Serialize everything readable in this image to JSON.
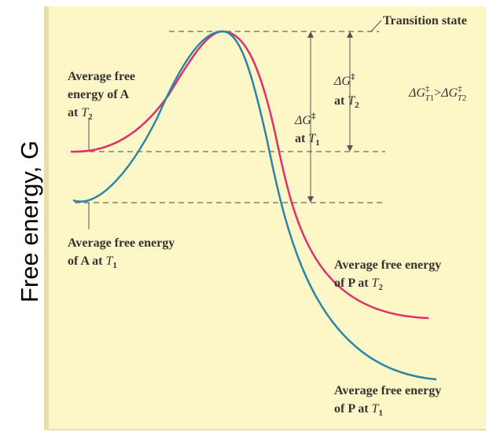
{
  "y_axis_label": "Free energy, G",
  "transition_state": "Transition state",
  "a_t2": {
    "lines": [
      "Average free",
      "energy of A"
    ],
    "last": "at",
    "var": "T",
    "sub": "2"
  },
  "a_t1": {
    "lines": [
      "Average free energy"
    ],
    "last": "of A at",
    "var": "T",
    "sub": "1"
  },
  "p_t2": {
    "lines": [
      "Average free energy"
    ],
    "last": "of P at",
    "var": "T",
    "sub": "2"
  },
  "p_t1": {
    "lines": [
      "Average free energy"
    ],
    "last": "of P at",
    "var": "T",
    "sub": "1"
  },
  "dg_t2": {
    "symbol": "ΔG",
    "sup": "‡",
    "last": "at",
    "var": "T",
    "sub": "2"
  },
  "dg_t1": {
    "symbol": "ΔG",
    "sup": "‡",
    "last": "at",
    "var": "T",
    "sub": "1"
  },
  "comparison": {
    "left": {
      "symbol": "ΔG",
      "sup": "‡",
      "var": "T",
      "sub": "1"
    },
    "operator": ">",
    "right": {
      "symbol": "ΔG",
      "sup": "‡",
      "var": "T",
      "sub": "2"
    }
  }
}
